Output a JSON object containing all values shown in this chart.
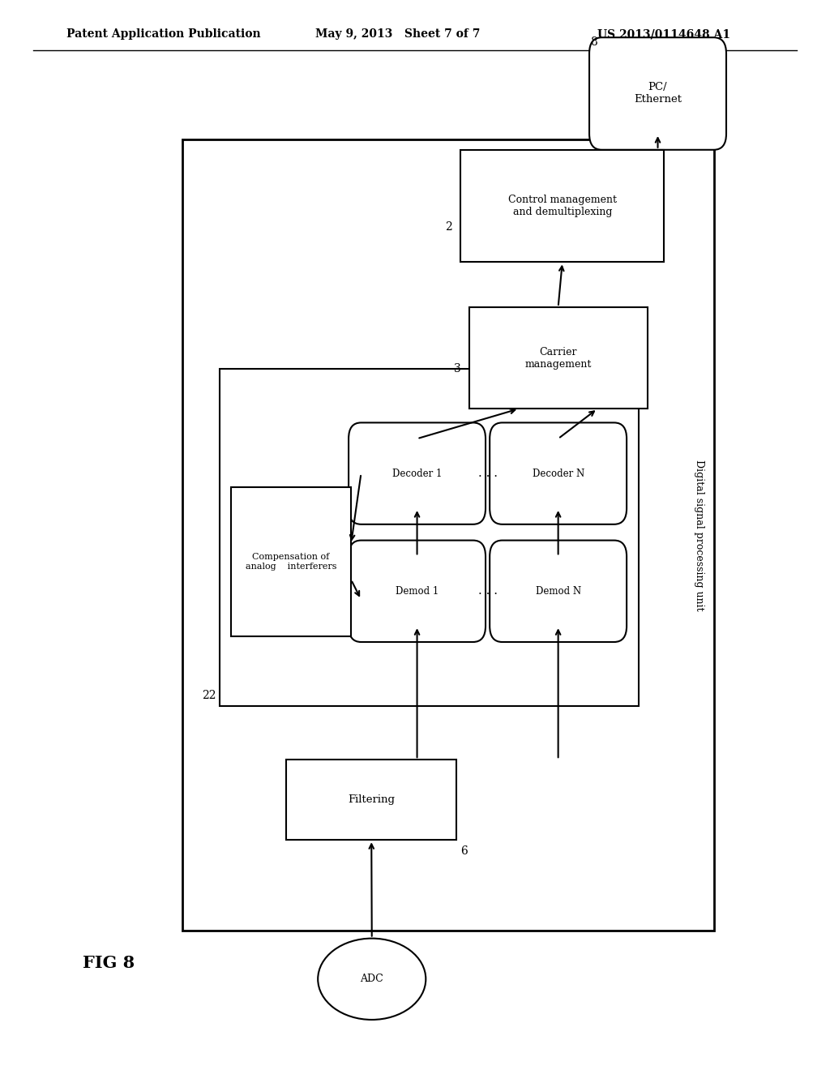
{
  "header_left": "Patent Application Publication",
  "header_mid": "May 9, 2013   Sheet 7 of 7",
  "header_right": "US 2013/0114648 A1",
  "fig_label": "FIG 8",
  "bg_color": "#ffffff",
  "box_color": "#ffffff",
  "box_edge": "#000000",
  "text_color": "#000000",
  "digital_label": "Digital signal processing unit"
}
